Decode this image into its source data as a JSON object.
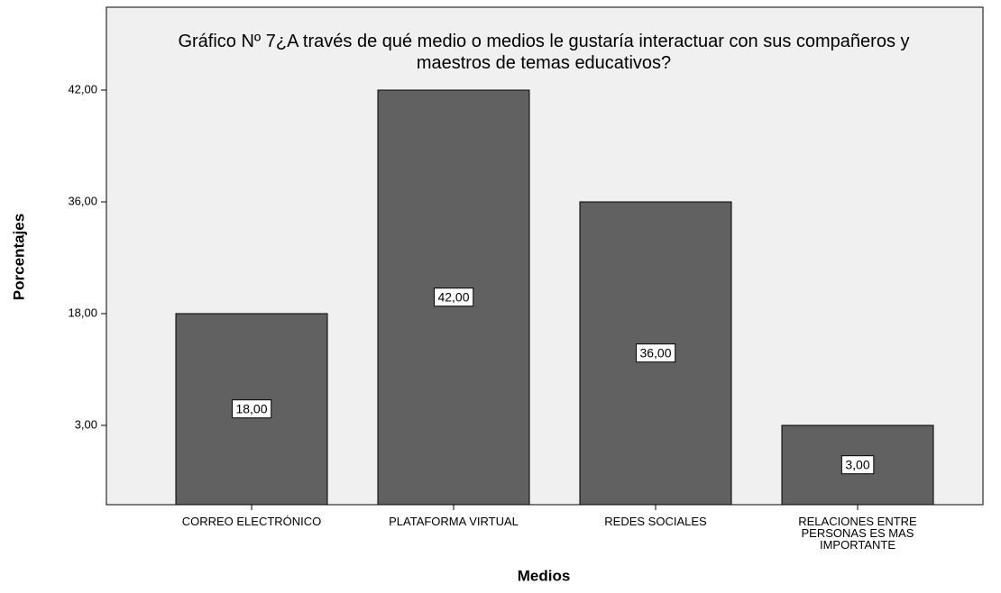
{
  "chart_data": {
    "type": "bar",
    "title": "Gráfico Nº 7¿A través de qué medio o medios le gustaría interactuar con sus compañeros y maestros de temas educativos?",
    "x_label": "Medios",
    "y_label": "Porcentajes",
    "categories": [
      "CORREO ELECTRÓNICO",
      "PLATAFORMA VIRTUAL",
      "REDES SOCIALES",
      "RELACIONES ENTRE PERSONAS ES MAS IMPORTANTE"
    ],
    "values": [
      18,
      42,
      36,
      3
    ],
    "value_labels": [
      "18,00",
      "42,00",
      "36,00",
      "3,00"
    ],
    "color": "#616161",
    "ylim": [
      0,
      48
    ],
    "yticks": [
      {
        "value": 3,
        "label": "3,00"
      },
      {
        "value": 18,
        "label": "18,00"
      },
      {
        "value": 36,
        "label": "36,00"
      },
      {
        "value": 42,
        "label": "42,00"
      }
    ]
  }
}
